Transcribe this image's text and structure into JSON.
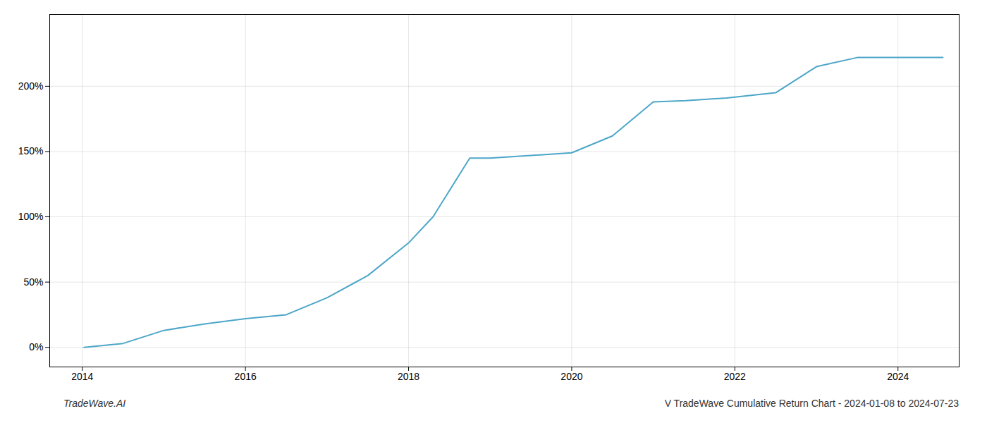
{
  "chart_data": {
    "type": "line",
    "title": "V TradeWave Cumulative Return Chart - 2024-01-08 to 2024-07-23",
    "annotations": [
      "TradeWave.AI"
    ],
    "x": [
      2014.02,
      2014.5,
      2015.0,
      2015.5,
      2016.0,
      2016.5,
      2017.0,
      2017.5,
      2018.0,
      2018.3,
      2018.75,
      2019.0,
      2019.5,
      2020.0,
      2020.5,
      2021.0,
      2021.4,
      2021.9,
      2022.2,
      2022.5,
      2023.0,
      2023.5,
      2024.0,
      2024.55
    ],
    "values": [
      0,
      3,
      13,
      18,
      22,
      25,
      38,
      55,
      80,
      100,
      145,
      145,
      147,
      149,
      162,
      188,
      189,
      191,
      193,
      195,
      215,
      222,
      222,
      222
    ],
    "color": "#4da6c8",
    "xlim": [
      2013.6,
      2024.75
    ],
    "ylim": [
      -15,
      255
    ],
    "xticks": [
      2014,
      2016,
      2018,
      2020,
      2022,
      2024
    ],
    "yticks": [
      {
        "value": 0,
        "label": "0%"
      },
      {
        "value": 50,
        "label": "50%"
      },
      {
        "value": 100,
        "label": "100%"
      },
      {
        "value": 150,
        "label": "150%"
      },
      {
        "value": 200,
        "label": "200%"
      }
    ],
    "grid": true
  }
}
